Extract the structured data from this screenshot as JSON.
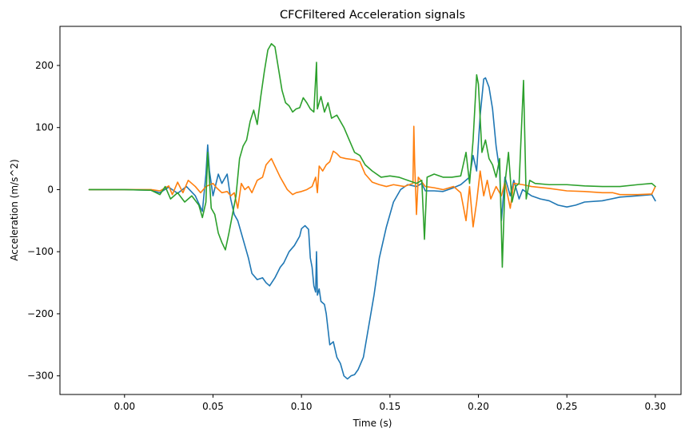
{
  "chart_data": {
    "type": "line",
    "title": "CFCFiltered Acceleration signals",
    "xlabel": "Time (s)",
    "ylabel": "Acceleration (m/s^2)",
    "xlim": [
      -0.0365,
      0.3145
    ],
    "ylim": [
      -330,
      263
    ],
    "x_ticks": [
      0.0,
      0.05,
      0.1,
      0.15,
      0.2,
      0.25,
      0.3
    ],
    "x_tick_labels": [
      "0.00",
      "0.05",
      "0.10",
      "0.15",
      "0.20",
      "0.25",
      "0.30"
    ],
    "y_ticks": [
      -300,
      -200,
      -100,
      0,
      100,
      200
    ],
    "y_tick_labels": [
      "−300",
      "−200",
      "−100",
      "0",
      "100",
      "200"
    ],
    "grid": false,
    "legend": "none",
    "series": [
      {
        "color": "#1f77b4",
        "points": [
          [
            -0.02,
            0
          ],
          [
            0.0,
            0
          ],
          [
            0.015,
            -1
          ],
          [
            0.02,
            -5
          ],
          [
            0.025,
            4
          ],
          [
            0.03,
            -6
          ],
          [
            0.035,
            5
          ],
          [
            0.04,
            -10
          ],
          [
            0.044,
            -35
          ],
          [
            0.046,
            25
          ],
          [
            0.047,
            72
          ],
          [
            0.048,
            30
          ],
          [
            0.05,
            -10
          ],
          [
            0.053,
            25
          ],
          [
            0.055,
            10
          ],
          [
            0.058,
            25
          ],
          [
            0.06,
            -15
          ],
          [
            0.062,
            -40
          ],
          [
            0.064,
            -50
          ],
          [
            0.066,
            -70
          ],
          [
            0.068,
            -90
          ],
          [
            0.07,
            -110
          ],
          [
            0.072,
            -135
          ],
          [
            0.075,
            -145
          ],
          [
            0.078,
            -142
          ],
          [
            0.08,
            -150
          ],
          [
            0.082,
            -155
          ],
          [
            0.085,
            -142
          ],
          [
            0.088,
            -125
          ],
          [
            0.09,
            -118
          ],
          [
            0.093,
            -100
          ],
          [
            0.096,
            -90
          ],
          [
            0.099,
            -75
          ],
          [
            0.1,
            -63
          ],
          [
            0.102,
            -58
          ],
          [
            0.104,
            -64
          ],
          [
            0.105,
            -110
          ],
          [
            0.106,
            -125
          ],
          [
            0.107,
            -155
          ],
          [
            0.108,
            -165
          ],
          [
            0.1085,
            -100
          ],
          [
            0.109,
            -170
          ],
          [
            0.11,
            -160
          ],
          [
            0.111,
            -180
          ],
          [
            0.113,
            -185
          ],
          [
            0.114,
            -200
          ],
          [
            0.116,
            -250
          ],
          [
            0.118,
            -245
          ],
          [
            0.12,
            -270
          ],
          [
            0.122,
            -280
          ],
          [
            0.124,
            -300
          ],
          [
            0.126,
            -305
          ],
          [
            0.128,
            -300
          ],
          [
            0.13,
            -298
          ],
          [
            0.132,
            -290
          ],
          [
            0.135,
            -270
          ],
          [
            0.138,
            -220
          ],
          [
            0.141,
            -170
          ],
          [
            0.144,
            -110
          ],
          [
            0.148,
            -60
          ],
          [
            0.152,
            -20
          ],
          [
            0.156,
            0
          ],
          [
            0.16,
            8
          ],
          [
            0.165,
            5
          ],
          [
            0.168,
            10
          ],
          [
            0.17,
            -2
          ],
          [
            0.175,
            -2
          ],
          [
            0.18,
            -3
          ],
          [
            0.185,
            2
          ],
          [
            0.19,
            8
          ],
          [
            0.195,
            20
          ],
          [
            0.197,
            55
          ],
          [
            0.199,
            30
          ],
          [
            0.201,
            120
          ],
          [
            0.203,
            178
          ],
          [
            0.204,
            180
          ],
          [
            0.206,
            165
          ],
          [
            0.208,
            130
          ],
          [
            0.21,
            70
          ],
          [
            0.212,
            30
          ],
          [
            0.213,
            -50
          ],
          [
            0.215,
            20
          ],
          [
            0.218,
            -10
          ],
          [
            0.22,
            15
          ],
          [
            0.223,
            -15
          ],
          [
            0.225,
            0
          ],
          [
            0.23,
            -10
          ],
          [
            0.235,
            -15
          ],
          [
            0.24,
            -18
          ],
          [
            0.245,
            -25
          ],
          [
            0.25,
            -28
          ],
          [
            0.255,
            -25
          ],
          [
            0.26,
            -20
          ],
          [
            0.27,
            -18
          ],
          [
            0.28,
            -12
          ],
          [
            0.29,
            -10
          ],
          [
            0.298,
            -8
          ],
          [
            0.3,
            -18
          ]
        ]
      },
      {
        "color": "#ff7f0e",
        "points": [
          [
            -0.02,
            0
          ],
          [
            0.0,
            0
          ],
          [
            0.015,
            0
          ],
          [
            0.02,
            -2
          ],
          [
            0.025,
            6
          ],
          [
            0.027,
            -8
          ],
          [
            0.03,
            12
          ],
          [
            0.033,
            -5
          ],
          [
            0.036,
            15
          ],
          [
            0.04,
            5
          ],
          [
            0.043,
            -5
          ],
          [
            0.046,
            5
          ],
          [
            0.05,
            10
          ],
          [
            0.052,
            3
          ],
          [
            0.055,
            -5
          ],
          [
            0.058,
            -3
          ],
          [
            0.06,
            -10
          ],
          [
            0.062,
            -5
          ],
          [
            0.064,
            -30
          ],
          [
            0.066,
            10
          ],
          [
            0.068,
            0
          ],
          [
            0.07,
            5
          ],
          [
            0.072,
            -5
          ],
          [
            0.075,
            15
          ],
          [
            0.078,
            20
          ],
          [
            0.08,
            40
          ],
          [
            0.083,
            50
          ],
          [
            0.085,
            38
          ],
          [
            0.088,
            20
          ],
          [
            0.09,
            10
          ],
          [
            0.092,
            0
          ],
          [
            0.095,
            -8
          ],
          [
            0.097,
            -5
          ],
          [
            0.1,
            -3
          ],
          [
            0.103,
            0
          ],
          [
            0.106,
            5
          ],
          [
            0.108,
            20
          ],
          [
            0.109,
            -5
          ],
          [
            0.11,
            38
          ],
          [
            0.112,
            30
          ],
          [
            0.114,
            40
          ],
          [
            0.116,
            45
          ],
          [
            0.118,
            62
          ],
          [
            0.12,
            58
          ],
          [
            0.122,
            52
          ],
          [
            0.125,
            50
          ],
          [
            0.13,
            48
          ],
          [
            0.133,
            45
          ],
          [
            0.136,
            25
          ],
          [
            0.14,
            12
          ],
          [
            0.144,
            8
          ],
          [
            0.148,
            5
          ],
          [
            0.152,
            8
          ],
          [
            0.158,
            5
          ],
          [
            0.163,
            10
          ],
          [
            0.1635,
            102
          ],
          [
            0.164,
            40
          ],
          [
            0.165,
            -40
          ],
          [
            0.166,
            20
          ],
          [
            0.17,
            5
          ],
          [
            0.175,
            3
          ],
          [
            0.18,
            0
          ],
          [
            0.186,
            5
          ],
          [
            0.19,
            -5
          ],
          [
            0.193,
            -50
          ],
          [
            0.195,
            5
          ],
          [
            0.197,
            -60
          ],
          [
            0.199,
            -20
          ],
          [
            0.201,
            30
          ],
          [
            0.203,
            -10
          ],
          [
            0.205,
            15
          ],
          [
            0.207,
            -15
          ],
          [
            0.21,
            5
          ],
          [
            0.213,
            -10
          ],
          [
            0.215,
            12
          ],
          [
            0.218,
            -30
          ],
          [
            0.22,
            10
          ],
          [
            0.225,
            8
          ],
          [
            0.23,
            5
          ],
          [
            0.24,
            2
          ],
          [
            0.25,
            -2
          ],
          [
            0.26,
            -3
          ],
          [
            0.27,
            -5
          ],
          [
            0.276,
            -5
          ],
          [
            0.28,
            -8
          ],
          [
            0.29,
            -8
          ],
          [
            0.298,
            -7
          ],
          [
            0.3,
            5
          ]
        ]
      },
      {
        "color": "#2ca02c",
        "points": [
          [
            -0.02,
            0
          ],
          [
            0.0,
            0
          ],
          [
            0.015,
            -1
          ],
          [
            0.02,
            -8
          ],
          [
            0.023,
            5
          ],
          [
            0.026,
            -15
          ],
          [
            0.03,
            -5
          ],
          [
            0.034,
            -20
          ],
          [
            0.038,
            -10
          ],
          [
            0.042,
            -25
          ],
          [
            0.044,
            -45
          ],
          [
            0.046,
            -20
          ],
          [
            0.047,
            60
          ],
          [
            0.049,
            -30
          ],
          [
            0.051,
            -40
          ],
          [
            0.053,
            -70
          ],
          [
            0.055,
            -85
          ],
          [
            0.057,
            -97
          ],
          [
            0.059,
            -70
          ],
          [
            0.061,
            -40
          ],
          [
            0.063,
            -10
          ],
          [
            0.065,
            50
          ],
          [
            0.067,
            70
          ],
          [
            0.069,
            80
          ],
          [
            0.071,
            110
          ],
          [
            0.073,
            128
          ],
          [
            0.075,
            105
          ],
          [
            0.077,
            150
          ],
          [
            0.079,
            190
          ],
          [
            0.081,
            225
          ],
          [
            0.083,
            235
          ],
          [
            0.085,
            230
          ],
          [
            0.087,
            195
          ],
          [
            0.089,
            160
          ],
          [
            0.091,
            140
          ],
          [
            0.093,
            135
          ],
          [
            0.095,
            125
          ],
          [
            0.097,
            130
          ],
          [
            0.099,
            132
          ],
          [
            0.101,
            148
          ],
          [
            0.103,
            140
          ],
          [
            0.105,
            130
          ],
          [
            0.107,
            125
          ],
          [
            0.1085,
            205
          ],
          [
            0.109,
            130
          ],
          [
            0.111,
            150
          ],
          [
            0.113,
            125
          ],
          [
            0.115,
            140
          ],
          [
            0.117,
            115
          ],
          [
            0.12,
            120
          ],
          [
            0.124,
            100
          ],
          [
            0.127,
            80
          ],
          [
            0.13,
            60
          ],
          [
            0.133,
            55
          ],
          [
            0.136,
            40
          ],
          [
            0.14,
            30
          ],
          [
            0.145,
            20
          ],
          [
            0.15,
            22
          ],
          [
            0.155,
            20
          ],
          [
            0.16,
            15
          ],
          [
            0.165,
            10
          ],
          [
            0.168,
            15
          ],
          [
            0.1695,
            -80
          ],
          [
            0.171,
            20
          ],
          [
            0.175,
            25
          ],
          [
            0.18,
            20
          ],
          [
            0.185,
            20
          ],
          [
            0.19,
            22
          ],
          [
            0.193,
            60
          ],
          [
            0.195,
            10
          ],
          [
            0.197,
            80
          ],
          [
            0.199,
            185
          ],
          [
            0.2,
            170
          ],
          [
            0.202,
            60
          ],
          [
            0.204,
            80
          ],
          [
            0.206,
            50
          ],
          [
            0.208,
            40
          ],
          [
            0.21,
            20
          ],
          [
            0.212,
            50
          ],
          [
            0.2135,
            -125
          ],
          [
            0.215,
            10
          ],
          [
            0.217,
            60
          ],
          [
            0.219,
            -20
          ],
          [
            0.221,
            5
          ],
          [
            0.223,
            10
          ],
          [
            0.2255,
            176
          ],
          [
            0.227,
            -15
          ],
          [
            0.229,
            15
          ],
          [
            0.232,
            10
          ],
          [
            0.24,
            8
          ],
          [
            0.25,
            8
          ],
          [
            0.26,
            6
          ],
          [
            0.27,
            5
          ],
          [
            0.28,
            5
          ],
          [
            0.29,
            8
          ],
          [
            0.298,
            10
          ],
          [
            0.3,
            5
          ]
        ]
      }
    ]
  }
}
